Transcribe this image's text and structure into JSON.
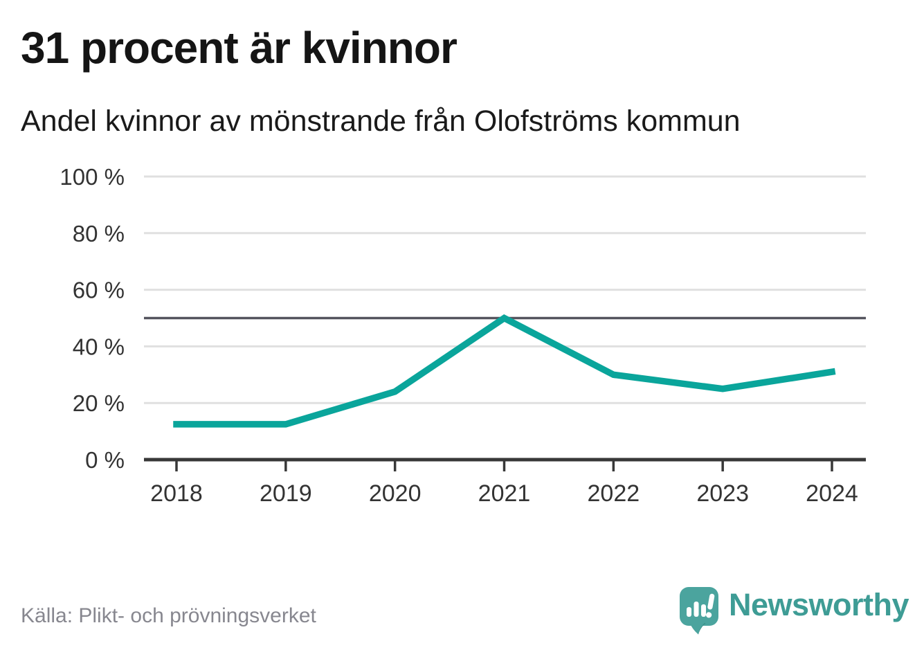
{
  "header": {
    "title": "31 procent är kvinnor",
    "subtitle": "Andel kvinnor av mönstrande från Olofströms kommun"
  },
  "footer": {
    "source": "Källa: Plikt- och prövningsverket",
    "brand": "Newsworthy"
  },
  "colors": {
    "line": "#0aa59b",
    "grid": "#e0e0e0",
    "reference_line": "#54545e",
    "axis": "#383838",
    "tick_label": "#333333",
    "title": "#151515",
    "source_text": "#87878f",
    "brand_text": "#3e9c95",
    "logo_bubble": "#4ba49e",
    "logo_bubble_shade": "#358b85"
  },
  "chart_data": {
    "type": "line",
    "x": [
      2018,
      2019,
      2020,
      2021,
      2022,
      2023,
      2024
    ],
    "series": [
      {
        "name": "Andel kvinnor av mönstrande",
        "values": [
          12.5,
          12.5,
          24,
          50,
          30,
          25,
          31
        ]
      }
    ],
    "title": "31 procent är kvinnor",
    "subtitle": "Andel kvinnor av mönstrande från Olofströms kommun",
    "xlabel": "",
    "ylabel": "",
    "ylim": [
      0,
      100
    ],
    "yticks": [
      0,
      20,
      40,
      60,
      80,
      100
    ],
    "ytick_suffix": " %",
    "grid": true,
    "reference_line": 50,
    "legend_position": "none"
  }
}
